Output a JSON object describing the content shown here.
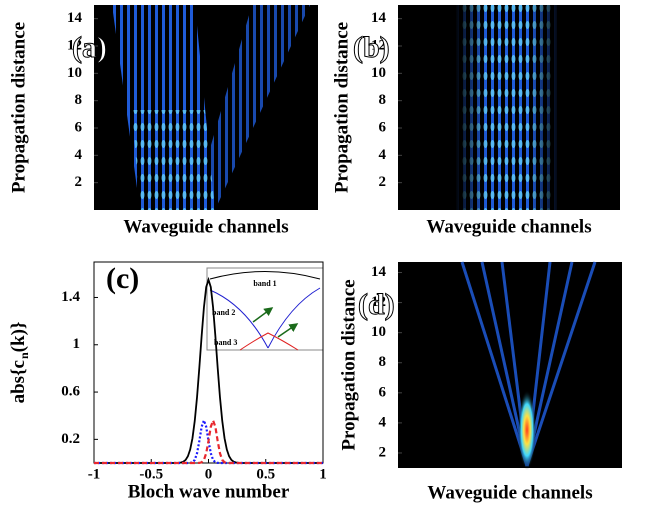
{
  "chart_data": [
    {
      "type": "heatmap",
      "panel_label": "(a)",
      "xlabel": "Waveguide channels",
      "ylabel": "Propagation distance",
      "ylim": [
        0,
        15
      ],
      "yticks": [
        2,
        4,
        6,
        8,
        10,
        12,
        14
      ]
    },
    {
      "type": "heatmap",
      "panel_label": "(b)",
      "xlabel": "Waveguide channels",
      "ylabel": "Propagation distance",
      "ylim": [
        0,
        15
      ],
      "yticks": [
        2,
        4,
        6,
        8,
        10,
        12,
        14
      ]
    },
    {
      "type": "line",
      "panel_label": "(c)",
      "xlabel": "Bloch wave number",
      "ylabel": "abs{c_n(k)}",
      "x": [
        -1,
        -0.5,
        -0.3,
        -0.28,
        -0.26,
        -0.24,
        -0.22,
        -0.2,
        -0.18,
        -0.16,
        -0.14,
        -0.12,
        -0.1,
        -0.08,
        -0.06,
        -0.04,
        -0.02,
        0,
        0.02,
        0.04,
        0.06,
        0.08,
        0.1,
        0.12,
        0.14,
        0.16,
        0.18,
        0.2,
        0.22,
        0.24,
        0.26,
        0.28,
        0.3,
        0.5,
        1
      ],
      "xlim": [
        -1,
        1
      ],
      "xticks": [
        -1,
        -0.5,
        0,
        0.5,
        1
      ],
      "ylim": [
        0,
        1.7
      ],
      "yticks": [
        0.2,
        0.6,
        1,
        1.4
      ],
      "series": [
        {
          "color": "#000000",
          "linestyle": "solid",
          "values": [
            0,
            0,
            0,
            0.001,
            0.002,
            0.004,
            0.011,
            0.026,
            0.057,
            0.114,
            0.21,
            0.357,
            0.558,
            0.807,
            1.074,
            1.316,
            1.488,
            1.55,
            1.488,
            1.316,
            1.074,
            0.807,
            0.558,
            0.357,
            0.21,
            0.114,
            0.057,
            0.026,
            0.011,
            0.004,
            0.002,
            0.001,
            0,
            0,
            0
          ]
        },
        {
          "color": "#1a1aff",
          "linestyle": "dotted",
          "values": [
            0,
            0,
            0,
            0,
            0,
            0,
            0,
            0,
            0,
            0.001,
            0.006,
            0.026,
            0.083,
            0.187,
            0.306,
            0.36,
            0.306,
            0.187,
            0.083,
            0.026,
            0.006,
            0.001,
            0,
            0,
            0,
            0,
            0,
            0,
            0,
            0,
            0,
            0,
            0,
            0,
            0
          ]
        },
        {
          "color": "#e8282e",
          "linestyle": "dashed",
          "values": [
            0,
            0,
            0,
            0,
            0,
            0,
            0,
            0,
            0,
            0,
            0,
            0,
            0,
            0.001,
            0.006,
            0.026,
            0.083,
            0.187,
            0.306,
            0.36,
            0.306,
            0.187,
            0.083,
            0.026,
            0.006,
            0.001,
            0,
            0,
            0,
            0,
            0,
            0,
            0,
            0,
            0
          ]
        }
      ],
      "inset_labels": [
        "band 1",
        "band 2",
        "band 3"
      ]
    },
    {
      "type": "heatmap",
      "panel_label": "(d)",
      "xlabel": "Waveguide channels",
      "ylabel": "Propagation distance",
      "ylim": [
        1,
        14.7
      ],
      "yticks": [
        2,
        4,
        6,
        8,
        10,
        12,
        14
      ]
    }
  ]
}
